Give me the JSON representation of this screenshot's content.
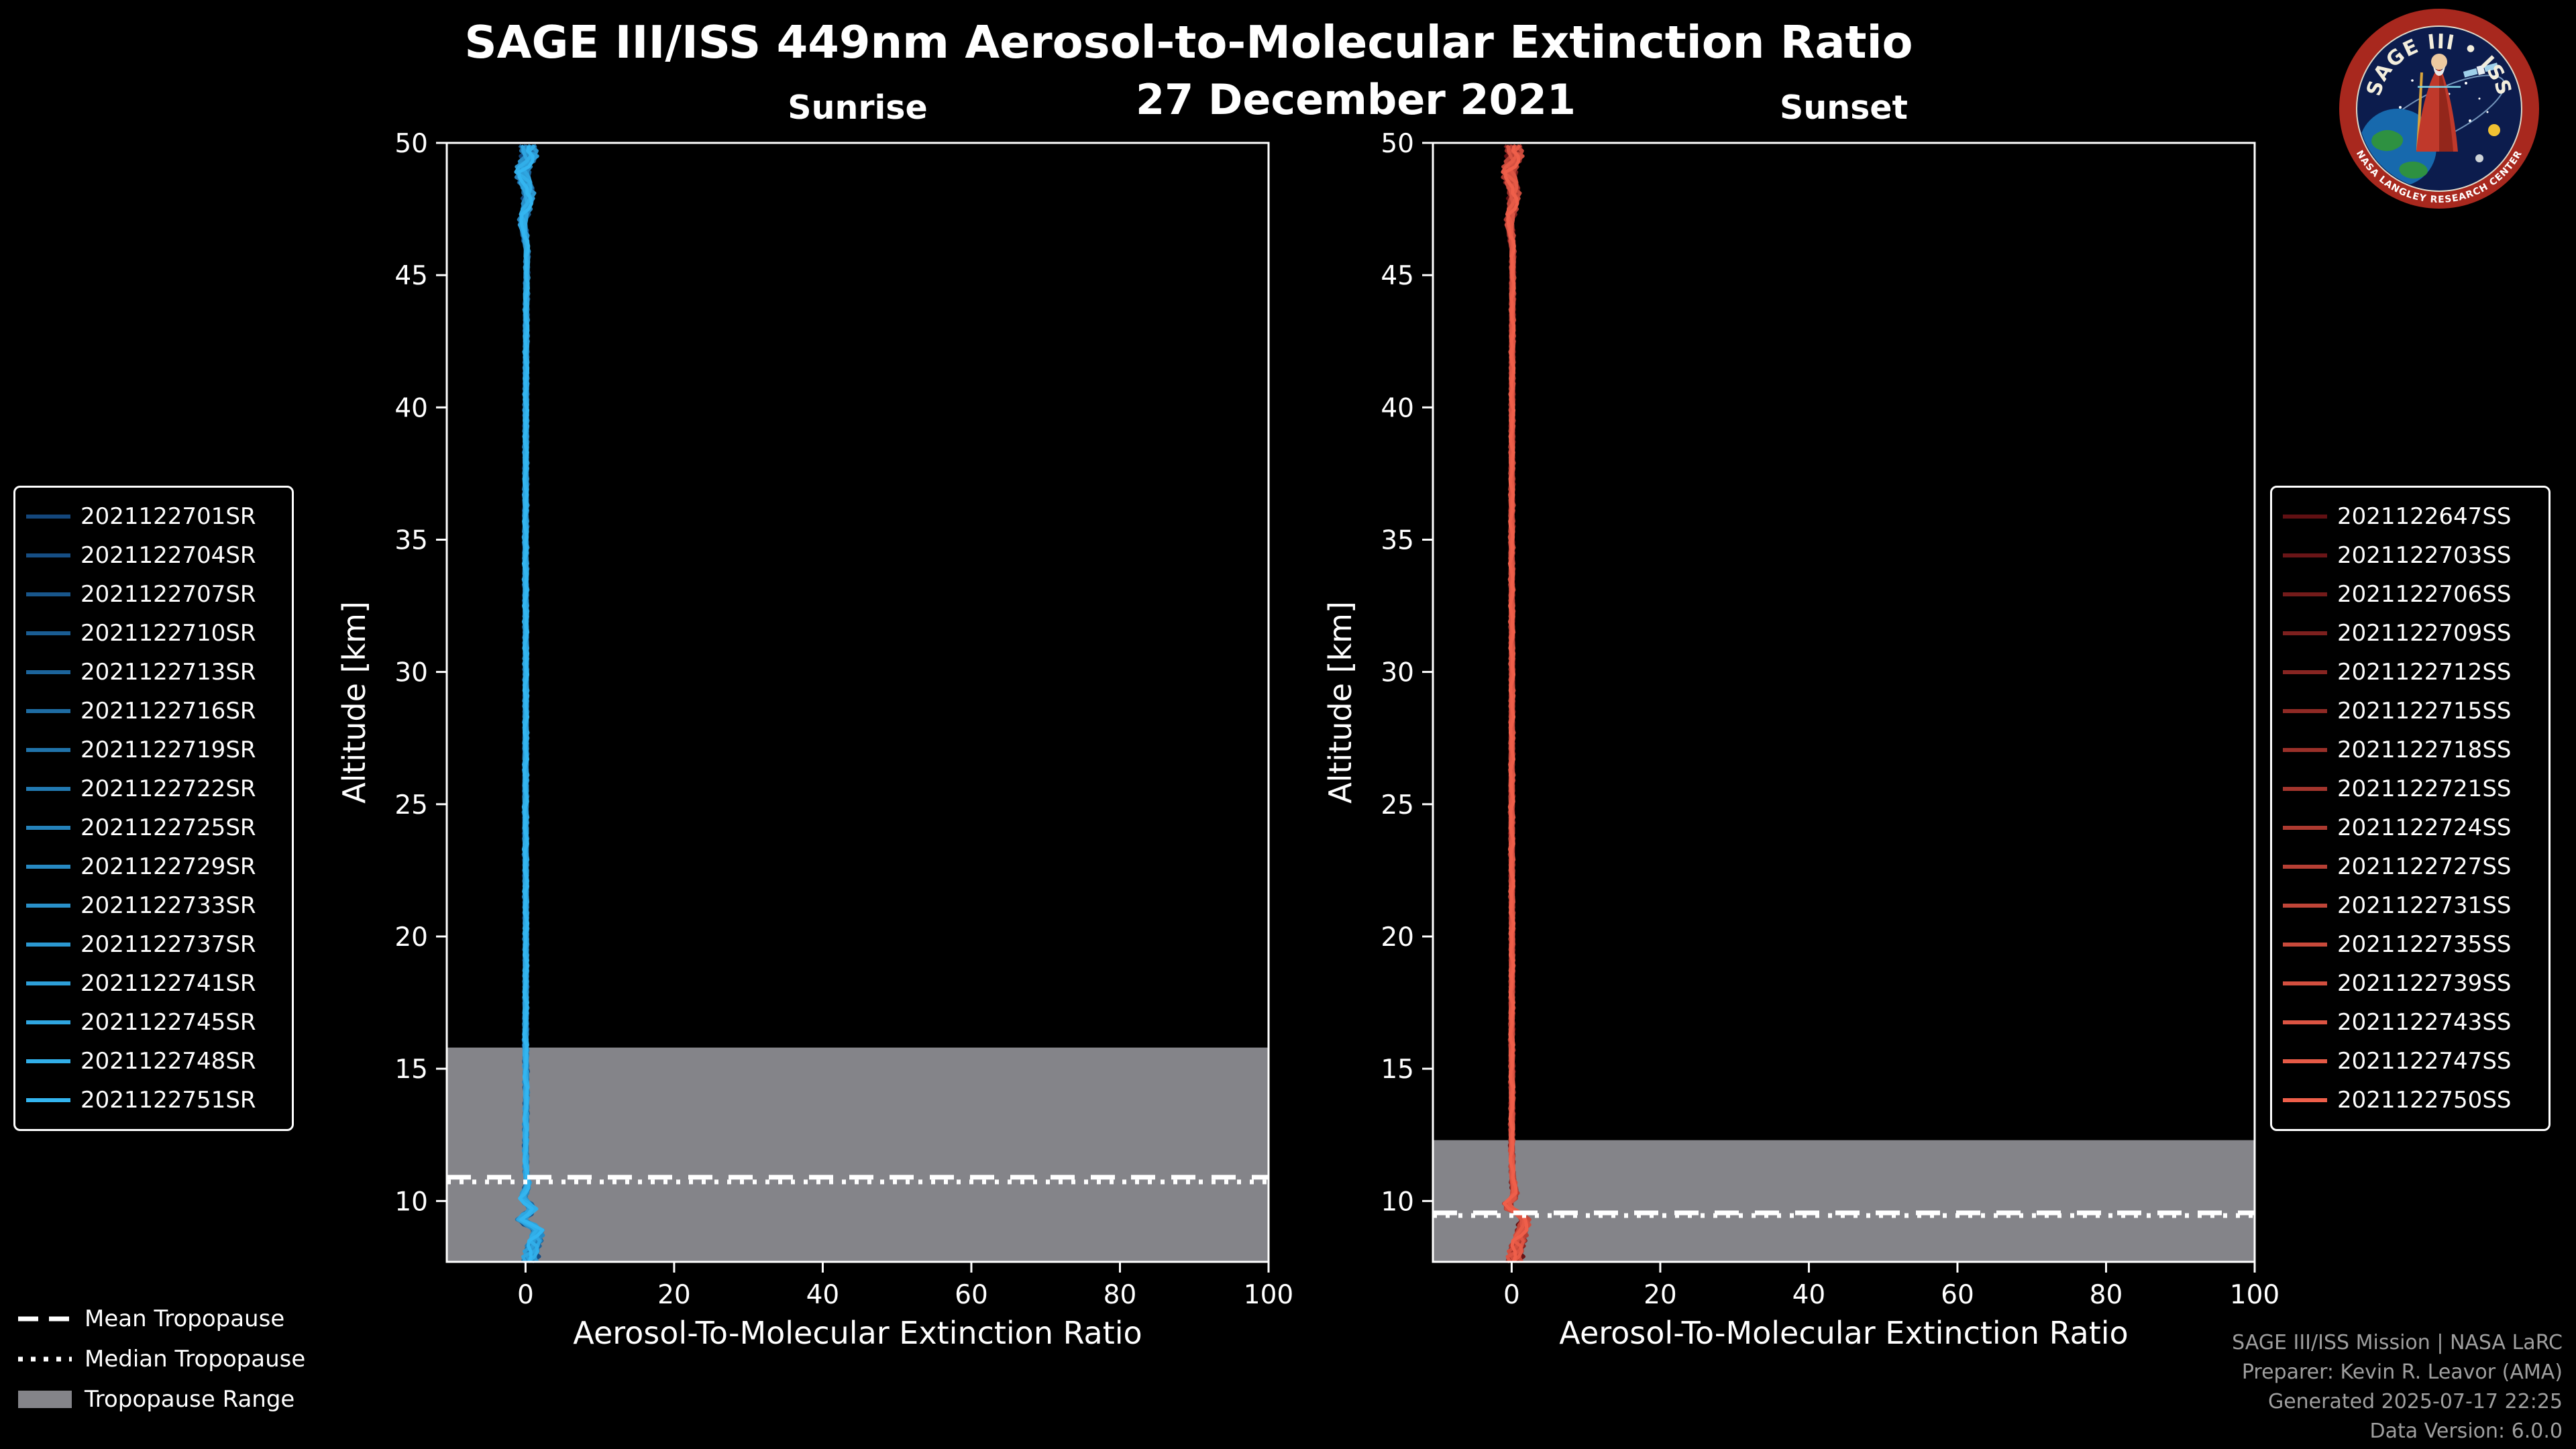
{
  "header": {
    "title": "SAGE III/ISS 449nm Aerosol-to-Molecular Extinction Ratio",
    "date_subtitle": "27 December 2021"
  },
  "tropopause_legend": {
    "mean": "Mean Tropopause",
    "median": "Median Tropopause",
    "range": "Tropopause Range"
  },
  "credits": {
    "line1": "SAGE III/ISS Mission | NASA LaRC",
    "line2": "Preparer: Kevin R. Leavor (AMA)",
    "line3": "Generated 2025-07-17 22:25",
    "line4": "Data Version: 6.0.0"
  },
  "logo": {
    "name": "SAGE III ISS mission patch",
    "title_text": "SAGE III • ISS",
    "ring_text": "NASA LANGLEY RESEARCH CENTER"
  },
  "colors": {
    "background": "#000000",
    "foreground": "#ffffff",
    "band": "#848489",
    "credits_text": "#9f9f9f"
  },
  "chart_data": [
    {
      "type": "line",
      "panel": "sunrise",
      "title": "Sunrise",
      "xlabel": "Aerosol-To-Molecular Extinction Ratio",
      "ylabel": "Altitude [km]",
      "xlim": [
        -10.6,
        100
      ],
      "ylim": [
        7.7,
        50
      ],
      "xticks": [
        0,
        20,
        40,
        60,
        80,
        100
      ],
      "yticks": [
        10,
        15,
        20,
        25,
        30,
        35,
        40,
        45,
        50
      ],
      "grid": false,
      "legend_position": "outside-left",
      "color_start": "#14477c",
      "color_end": "#33b5f0",
      "mean_tropopause_km": 10.9,
      "median_tropopause_km": 10.72,
      "tropopause_range_km": [
        7.7,
        15.8
      ],
      "series_ids": [
        "2021122701SR",
        "2021122704SR",
        "2021122707SR",
        "2021122710SR",
        "2021122713SR",
        "2021122716SR",
        "2021122719SR",
        "2021122722SR",
        "2021122725SR",
        "2021122729SR",
        "2021122733SR",
        "2021122737SR",
        "2021122741SR",
        "2021122745SR",
        "2021122748SR",
        "2021122751SR"
      ],
      "profile_altitudes_km": [
        7.7,
        8.4,
        8.9,
        9.3,
        9.7,
        10.1,
        10.6,
        11,
        12,
        14,
        16,
        20,
        25,
        30,
        35,
        40,
        44,
        46,
        47,
        48,
        49,
        49.5,
        50
      ],
      "profile_ratio": [
        0.5,
        1.1,
        1.7,
        -0.6,
        1.0,
        -0.4,
        0.3,
        0.1,
        0.0,
        0.1,
        0.0,
        0.05,
        0.0,
        0.05,
        0.0,
        0.05,
        0.1,
        0.2,
        -0.4,
        0.5,
        -0.5,
        0.6,
        0.2
      ]
    },
    {
      "type": "line",
      "panel": "sunset",
      "title": "Sunset",
      "xlabel": "Aerosol-To-Molecular Extinction Ratio",
      "ylabel": "Altitude [km]",
      "xlim": [
        -10.6,
        100
      ],
      "ylim": [
        7.7,
        50
      ],
      "xticks": [
        0,
        20,
        40,
        60,
        80,
        100
      ],
      "yticks": [
        10,
        15,
        20,
        25,
        30,
        35,
        40,
        45,
        50
      ],
      "grid": false,
      "legend_position": "outside-right",
      "color_start": "#611013",
      "color_end": "#ef5f4a",
      "mean_tropopause_km": 9.55,
      "median_tropopause_km": 9.45,
      "tropopause_range_km": [
        7.7,
        12.3
      ],
      "series_ids": [
        "2021122647SS",
        "2021122703SS",
        "2021122706SS",
        "2021122709SS",
        "2021122712SS",
        "2021122715SS",
        "2021122718SS",
        "2021122721SS",
        "2021122724SS",
        "2021122727SS",
        "2021122731SS",
        "2021122735SS",
        "2021122739SS",
        "2021122743SS",
        "2021122747SS",
        "2021122750SS"
      ],
      "profile_altitudes_km": [
        7.7,
        8.4,
        8.9,
        9.4,
        9.8,
        10.2,
        10.7,
        11,
        12,
        14,
        16,
        20,
        25,
        30,
        35,
        40,
        44,
        46,
        47,
        48,
        49,
        49.5,
        50
      ],
      "profile_ratio": [
        0.3,
        0.8,
        1.4,
        1.9,
        -0.9,
        0.5,
        0.2,
        0.1,
        0.0,
        0.05,
        0.0,
        0.05,
        0.0,
        0.05,
        0.0,
        0.05,
        0.1,
        0.15,
        -0.3,
        0.4,
        -0.4,
        0.5,
        0.1
      ]
    }
  ]
}
